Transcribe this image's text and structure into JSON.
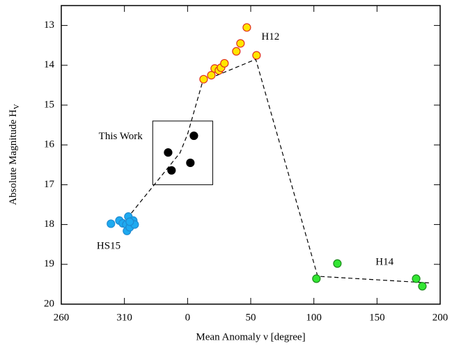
{
  "chart_data": {
    "type": "scatter",
    "x_label": "Mean Anomaly ν [degree]",
    "y_label": "Absolute Magnitude H",
    "y_label_sub": "V",
    "xlim": [
      -100,
      200
    ],
    "ylim": [
      20,
      12.5
    ],
    "xticks": [
      {
        "value": -100,
        "label": "260"
      },
      {
        "value": -50,
        "label": "310"
      },
      0,
      50,
      100,
      150,
      200
    ],
    "yticks": [
      13,
      14,
      15,
      16,
      17,
      18,
      19,
      20
    ],
    "series": [
      {
        "color": "#ffe600",
        "edgecolor": "#e0301e",
        "x": [
          12.7,
          18.8,
          21.5,
          24.8,
          26.5,
          29.2,
          38.6,
          41.9,
          46.9,
          54.6
        ],
        "values": [
          14.35,
          14.25,
          14.08,
          14.13,
          14.06,
          13.95,
          13.65,
          13.45,
          13.05,
          13.75
        ]
      },
      {
        "color": "#000000",
        "edgecolor": "#000000",
        "x": [
          -15.4,
          -12.7,
          2.2,
          5.0
        ],
        "values": [
          16.19,
          16.64,
          16.45,
          15.77
        ]
      },
      {
        "color": "#1eaaf0",
        "edgecolor": "#1e8ad0",
        "x": [
          -60.7,
          -54.0,
          -51.3,
          -46.9,
          -48.5,
          -48.0,
          -45.8,
          -43.0,
          -41.9,
          -45.8
        ],
        "values": [
          17.98,
          17.9,
          17.97,
          17.8,
          18.0,
          18.16,
          18.07,
          17.9,
          18.0,
          17.93
        ]
      },
      {
        "color": "#33e633",
        "edgecolor": "#1a8a1a",
        "x": [
          102,
          118.6,
          181,
          185.9
        ],
        "values": [
          19.36,
          18.98,
          19.36,
          19.55
        ]
      }
    ],
    "fit_line": {
      "x": [
        -48,
        -6,
        0,
        12,
        54,
        103,
        193
      ],
      "values": [
        17.85,
        16.2,
        15.73,
        14.4,
        13.85,
        19.3,
        19.47
      ]
    },
    "box": {
      "label": "This Work",
      "x": [
        -27.6,
        19.9
      ],
      "y": [
        15.4,
        17.0
      ],
      "label_x": -53,
      "label_y": 15.8
    },
    "annotations": [
      {
        "text": "H12",
        "x": 65.6,
        "y": 13.3
      },
      {
        "text": "HS15",
        "x": -62.5,
        "y": 18.55
      },
      {
        "text": "H14",
        "x": 156,
        "y": 18.95
      }
    ]
  }
}
